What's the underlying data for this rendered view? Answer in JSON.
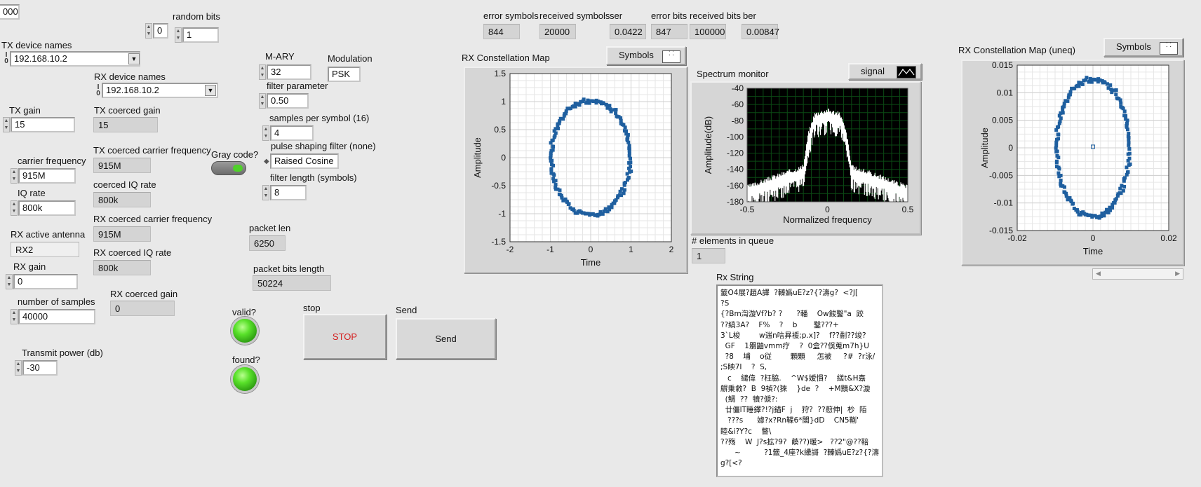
{
  "top_left_value": "000",
  "random_bits": {
    "label": "random bits",
    "spin_value": "0",
    "value": "1"
  },
  "tx_device_names": {
    "label": "TX device names",
    "value": "192.168.10.2"
  },
  "rx_device_names": {
    "label": "RX device names",
    "value": "192.168.10.2"
  },
  "tx_gain": {
    "label": "TX gain",
    "value": "15"
  },
  "tx_coerced_gain": {
    "label": "TX coerced gain",
    "value": "15"
  },
  "tx_coerced_carrier_frequency": {
    "label": "TX coerced carrier frequency",
    "value": "915M"
  },
  "carrier_frequency": {
    "label": "carrier frequency",
    "value": "915M"
  },
  "coerced_iq_rate": {
    "label": "coerced IQ rate",
    "value": "800k"
  },
  "iq_rate": {
    "label": "IQ rate",
    "value": "800k"
  },
  "rx_coerced_carrier_frequency": {
    "label": "RX coerced carrier frequency",
    "value": "915M"
  },
  "rx_active_antenna": {
    "label": "RX active antenna",
    "value": "RX2"
  },
  "rx_coerced_iq_rate": {
    "label": "RX coerced IQ rate",
    "value": "800k"
  },
  "rx_gain": {
    "label": "RX gain",
    "value": "0"
  },
  "number_of_samples": {
    "label": "number of samples",
    "value": "40000"
  },
  "rx_coerced_gain": {
    "label": "RX coerced gain",
    "value": "0"
  },
  "transmit_power": {
    "label": "Transmit power (db)",
    "value": "-30"
  },
  "gray_code": {
    "label": "Gray code?",
    "state": "on"
  },
  "m_ary": {
    "label": "M-ARY",
    "value": "32"
  },
  "modulation": {
    "label": "Modulation",
    "value": "PSK"
  },
  "filter_parameter": {
    "label": "filter parameter",
    "value": "0.50"
  },
  "samples_per_symbol": {
    "label": "samples per symbol (16)",
    "value": "4"
  },
  "pulse_shaping_filter": {
    "label": "pulse shaping filter (none)",
    "value": "Raised Cosine"
  },
  "filter_length": {
    "label": "filter length (symbols)",
    "value": "8"
  },
  "packet_len": {
    "label": "packet len",
    "value": "6250"
  },
  "packet_bits_length": {
    "label": "packet bits length",
    "value": "50224"
  },
  "valid": {
    "label": "valid?",
    "state": "on"
  },
  "found": {
    "label": "found?",
    "state": "on"
  },
  "stop_button": {
    "label": "stop",
    "text": "STOP",
    "text_color": "#d42020"
  },
  "send_button": {
    "label": "Send",
    "text": "Send"
  },
  "error_stats": {
    "error_symbols_label": "error symbols",
    "error_symbols": "844",
    "received_symbols_label": "received symbols",
    "received_symbols": "20000",
    "ser_label": "ser",
    "ser": "0.0422",
    "error_bits_label": "error bits",
    "error_bits": "847",
    "received_bits_label": "received bits",
    "received_bits": "100000",
    "ber_label": "ber",
    "ber": "0.00847"
  },
  "elements_in_queue": {
    "label": "# elements in queue",
    "value": "1"
  },
  "rx_string": {
    "label": "Rx String",
    "lines": [
      "籤O4展?趙A譯  ?轃嬀uE?z?{?濤g?  <?J[",
      "?S",
      "{?Bm渹漩Vf?b? ?      ?轓    Ow餕鑿\"a  跤",
      "??縞3A?    F%    ?    b       鑿???+",
      "3`L梭        w遄n唁昪褑;p.x]?    f??劀??竣?",
      "  GF    1朤鼬vmm疗    ?  0盒??俁蒐m7h}U",
      "  ?8    埔    o従        顆顆     怎被     ?#  ?r泳/",
      ";S眏7I    ?  S,",
      "   c    繾偉  ?枉脇.    ^W$嫒愪?    縒t&H嘉",
      "鵿乗敹?  B  9禎?(猍    }de  ?    +M黷&X?漩",
      "  (鯛  ??  犢?傂?:",
      "  廿僵lT睡鐸?!?j錨F  j    狩?  ??藯伸|  杪  陌",
      "   ???s      嫭?x?Rn鞢6*闟}dD    CN5鞩'",
      "睦&i?Y?c    瞥\\",
      "??殇    W  J?s拡?9?  藈??)暖>   ??2\"@??鞛",
      "      ~          ?1籤_4座?k纝謌  ?轃嬀uE?z?{?濤",
      "g?[<?"
    ]
  },
  "rx_constellation": {
    "title": "RX Constellation Map",
    "symbols_label": "Symbols",
    "xlabel": "Time",
    "ylabel": "Amplitude",
    "x_ticks": [
      "-2",
      "-1",
      "0",
      "1",
      "2"
    ],
    "y_ticks": [
      "1.5",
      "1",
      "0.5",
      "0",
      "-0.5",
      "-1",
      "-1.5"
    ]
  },
  "spectrum": {
    "title": "Spectrum monitor",
    "legend_label": "signal",
    "xlabel": "Normalized frequency",
    "ylabel": "Amplitude(dB)",
    "x_ticks": [
      "-0.5",
      "0",
      "0.5"
    ],
    "y_ticks": [
      "-40",
      "-60",
      "-80",
      "-100",
      "-120",
      "-140",
      "-160",
      "-180"
    ]
  },
  "rx_constellation_uneq": {
    "title": "RX Constellation Map (uneq)",
    "symbols_label": "Symbols",
    "xlabel": "Time",
    "ylabel": "Amplitude",
    "x_ticks": [
      "-0.02",
      "0",
      "0.02"
    ],
    "y_ticks": [
      "0.015",
      "0.01",
      "0.005",
      "0",
      "-0.005",
      "-0.01",
      "-0.015"
    ]
  },
  "chart_data": [
    {
      "type": "scatter",
      "title": "RX Constellation Map",
      "xlabel": "Time",
      "ylabel": "Amplitude",
      "xlim": [
        -2,
        2
      ],
      "ylim": [
        -1.5,
        1.5
      ],
      "grid": true,
      "series": [
        {
          "shape": "ellipse",
          "center": [
            0,
            0
          ],
          "x_radius": 0.98,
          "y_radius": 1.02
        }
      ]
    },
    {
      "type": "line",
      "title": "Spectrum monitor",
      "xlabel": "Normalized frequency",
      "ylabel": "Amplitude(dB)",
      "xlim": [
        -0.5,
        0.5
      ],
      "ylim": [
        -180,
        -40
      ],
      "grid": true,
      "series": [
        {
          "name": "signal",
          "x": [
            -0.5,
            -0.3,
            -0.15,
            -0.12,
            -0.08,
            0,
            0.08,
            0.12,
            0.15,
            0.3,
            0.5
          ],
          "y": [
            -165,
            -150,
            -140,
            -100,
            -75,
            -70,
            -75,
            -100,
            -140,
            -150,
            -165
          ]
        }
      ]
    },
    {
      "type": "scatter",
      "title": "RX Constellation Map (uneq)",
      "xlabel": "Time",
      "ylabel": "Amplitude",
      "xlim": [
        -0.025,
        0.025
      ],
      "ylim": [
        -0.015,
        0.015
      ],
      "grid": true,
      "series": [
        {
          "shape": "ellipse",
          "center": [
            0,
            0
          ],
          "x_radius": 0.012,
          "y_radius": 0.0125
        }
      ]
    }
  ]
}
